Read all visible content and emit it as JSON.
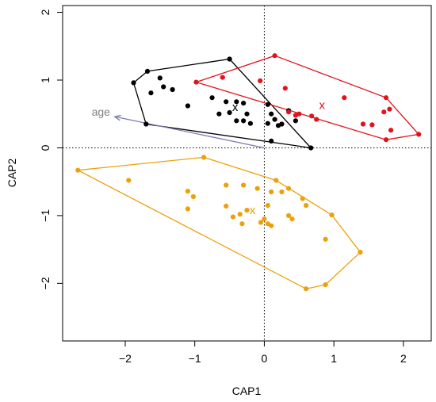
{
  "chart_data": {
    "type": "scatter",
    "xlabel": "CAP1",
    "ylabel": "CAP2",
    "xlim": [
      -2.9,
      2.4
    ],
    "ylim": [
      -2.85,
      2.1
    ],
    "xticks": [
      -2,
      -1,
      0,
      1,
      2
    ],
    "yticks": [
      -2,
      -1,
      0,
      1,
      2
    ],
    "reference_lines": {
      "x": 0,
      "y": 0,
      "style": "dotted"
    },
    "grid": false,
    "legend": "none",
    "groups": [
      {
        "color": "#000000",
        "hull": [
          [
            -1.88,
            0.96
          ],
          [
            -1.68,
            1.13
          ],
          [
            -0.5,
            1.31
          ],
          [
            0.67,
            0.0
          ],
          [
            -1.7,
            0.35
          ]
        ],
        "centroid": [
          -0.42,
          0.6
        ],
        "centroid_label": "x",
        "points": [
          [
            -1.88,
            0.96
          ],
          [
            -1.68,
            1.13
          ],
          [
            -0.5,
            1.31
          ],
          [
            0.67,
            0.0
          ],
          [
            -1.7,
            0.35
          ],
          [
            -1.5,
            1.03
          ],
          [
            -1.45,
            0.9
          ],
          [
            -1.63,
            0.81
          ],
          [
            -1.32,
            0.86
          ],
          [
            -1.1,
            0.62
          ],
          [
            -0.75,
            0.74
          ],
          [
            -0.65,
            0.5
          ],
          [
            -0.55,
            0.68
          ],
          [
            -0.5,
            0.52
          ],
          [
            -0.4,
            0.68
          ],
          [
            -0.3,
            0.66
          ],
          [
            -0.25,
            0.5
          ],
          [
            -0.2,
            0.36
          ],
          [
            -0.4,
            0.4
          ],
          [
            -0.3,
            0.4
          ],
          [
            0.05,
            0.64
          ],
          [
            0.1,
            0.5
          ],
          [
            0.15,
            0.42
          ],
          [
            0.05,
            0.36
          ],
          [
            0.2,
            0.33
          ],
          [
            0.25,
            0.35
          ],
          [
            0.35,
            0.55
          ],
          [
            0.45,
            0.4
          ],
          [
            0.1,
            0.1
          ]
        ]
      },
      {
        "color": "#e3121b",
        "hull": [
          [
            -0.98,
            0.97
          ],
          [
            0.15,
            1.36
          ],
          [
            1.75,
            0.74
          ],
          [
            2.22,
            0.2
          ],
          [
            1.75,
            0.12
          ]
        ],
        "centroid": [
          0.83,
          0.63
        ],
        "centroid_label": "x",
        "points": [
          [
            -0.98,
            0.97
          ],
          [
            0.15,
            1.36
          ],
          [
            1.75,
            0.74
          ],
          [
            2.22,
            0.2
          ],
          [
            1.75,
            0.12
          ],
          [
            -0.6,
            1.04
          ],
          [
            -0.06,
            0.99
          ],
          [
            0.3,
            0.88
          ],
          [
            0.35,
            0.53
          ],
          [
            0.5,
            0.5
          ],
          [
            0.68,
            0.47
          ],
          [
            0.75,
            0.42
          ],
          [
            1.15,
            0.74
          ],
          [
            1.42,
            0.35
          ],
          [
            1.55,
            0.34
          ],
          [
            1.72,
            0.53
          ],
          [
            1.8,
            0.57
          ],
          [
            1.82,
            0.26
          ],
          [
            0.45,
            0.48
          ]
        ]
      },
      {
        "color": "#eba10a",
        "hull": [
          [
            -2.68,
            -0.33
          ],
          [
            -0.87,
            -0.14
          ],
          [
            0.17,
            -0.48
          ],
          [
            0.97,
            -0.99
          ],
          [
            1.38,
            -1.54
          ],
          [
            0.88,
            -2.02
          ],
          [
            0.6,
            -2.08
          ]
        ],
        "centroid": [
          -0.17,
          -0.92
        ],
        "centroid_label": "x",
        "points": [
          [
            -2.68,
            -0.33
          ],
          [
            -0.87,
            -0.14
          ],
          [
            0.17,
            -0.48
          ],
          [
            0.97,
            -0.99
          ],
          [
            1.38,
            -1.54
          ],
          [
            0.88,
            -2.02
          ],
          [
            0.6,
            -2.08
          ],
          [
            -1.95,
            -0.48
          ],
          [
            -1.1,
            -0.64
          ],
          [
            -1.02,
            -0.72
          ],
          [
            -1.1,
            -0.9
          ],
          [
            -0.55,
            -0.55
          ],
          [
            -0.3,
            -0.55
          ],
          [
            -0.1,
            -0.6
          ],
          [
            -0.55,
            -0.86
          ],
          [
            -0.45,
            -1.02
          ],
          [
            -0.35,
            -0.98
          ],
          [
            -0.25,
            -0.92
          ],
          [
            -0.32,
            -1.12
          ],
          [
            0.05,
            -0.85
          ],
          [
            0.1,
            -0.65
          ],
          [
            0.25,
            -0.65
          ],
          [
            0.35,
            -0.6
          ],
          [
            0.55,
            -0.75
          ],
          [
            0.6,
            -0.85
          ],
          [
            0.35,
            -1.0
          ],
          [
            0.4,
            -1.05
          ],
          [
            0.0,
            -1.05
          ],
          [
            0.05,
            -1.12
          ],
          [
            0.1,
            -1.15
          ],
          [
            -0.05,
            -1.1
          ],
          [
            0.88,
            -1.35
          ]
        ]
      }
    ],
    "vector": {
      "label": "age",
      "from": [
        0.0,
        0.0
      ],
      "to": [
        -2.15,
        0.46
      ],
      "color": "#7b7bb4",
      "label_color": "#808080",
      "label_at": [
        -2.35,
        0.53
      ]
    }
  }
}
